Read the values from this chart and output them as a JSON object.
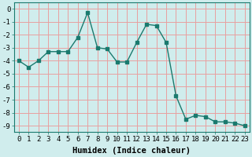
{
  "x": [
    0,
    1,
    2,
    3,
    4,
    5,
    6,
    7,
    8,
    9,
    10,
    11,
    12,
    13,
    14,
    15,
    16,
    17,
    18,
    19,
    20,
    21,
    22,
    23
  ],
  "y": [
    -4.0,
    -4.5,
    -4.0,
    -3.3,
    -3.3,
    -3.3,
    -2.2,
    -0.3,
    -3.0,
    -3.1,
    -4.1,
    -4.1,
    -2.6,
    -1.2,
    -1.3,
    -2.6,
    -6.7,
    -8.5,
    -8.2,
    -8.3,
    -8.7,
    -8.7,
    -8.8,
    -9.0
  ],
  "line_color": "#1a7a6e",
  "marker": "s",
  "markersize": 2.5,
  "linewidth": 1.0,
  "xlabel": "Humidex (Indice chaleur)",
  "xlim": [
    -0.5,
    23.5
  ],
  "ylim": [
    -9.5,
    0.5
  ],
  "yticks": [
    0,
    -1,
    -2,
    -3,
    -4,
    -5,
    -6,
    -7,
    -8,
    -9
  ],
  "xticks": [
    0,
    1,
    2,
    3,
    4,
    5,
    6,
    7,
    8,
    9,
    10,
    11,
    12,
    13,
    14,
    15,
    16,
    17,
    18,
    19,
    20,
    21,
    22,
    23
  ],
  "bg_color": "#d0eded",
  "plot_bg_color": "#d0eded",
  "grid_color": "#e8a0a0",
  "xlabel_fontsize": 7.5,
  "tick_fontsize": 6.5
}
